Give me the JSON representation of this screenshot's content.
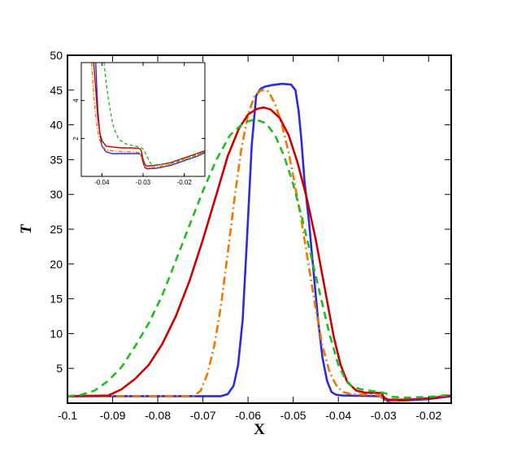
{
  "chart_data": [
    {
      "type": "line",
      "title": "",
      "xlabel": "X",
      "ylabel": "T",
      "xlim": [
        -0.1,
        -0.015
      ],
      "ylim": [
        0,
        50
      ],
      "xticks": [
        -0.1,
        -0.09,
        -0.08,
        -0.07,
        -0.06,
        -0.05,
        -0.04,
        -0.03,
        -0.02
      ],
      "xtick_labels": [
        "-0.1",
        "-0.09",
        "-0.08",
        "-0.07",
        "-0.06",
        "-0.05",
        "-0.04",
        "-0.03",
        "-0.02"
      ],
      "yticks": [
        5,
        10,
        15,
        20,
        25,
        30,
        35,
        40,
        45,
        50
      ],
      "ytick_labels": [
        "5",
        "10",
        "15",
        "20",
        "25",
        "30",
        "35",
        "40",
        "45",
        "50"
      ],
      "grid": false,
      "legend": "none",
      "series": [
        {
          "color": "#2b2bdd",
          "dash": "solid",
          "x": [
            -0.1,
            -0.066,
            -0.0645,
            -0.0632,
            -0.0622,
            -0.0612,
            -0.0602,
            -0.0592,
            -0.0582,
            -0.0572,
            -0.0562,
            -0.0548,
            -0.0525,
            -0.0505,
            -0.0495,
            -0.0488,
            -0.0482,
            -0.0475,
            -0.0465,
            -0.0455,
            -0.0445,
            -0.0435,
            -0.0425,
            -0.0415,
            -0.0405,
            -0.039,
            -0.035,
            -0.0305,
            -0.0297,
            -0.029,
            -0.025,
            -0.02,
            -0.015
          ],
          "y": [
            1.0,
            1.0,
            1.3,
            2.5,
            5.5,
            12,
            24,
            37,
            44.2,
            45.2,
            45.5,
            45.7,
            45.9,
            45.8,
            45,
            42,
            38,
            32,
            26,
            19,
            12,
            6.5,
            3.2,
            1.6,
            1.2,
            1.1,
            1.05,
            1.0,
            0.5,
            0.3,
            0.4,
            0.6,
            1.0
          ]
        },
        {
          "color": "#ee7700",
          "dash": "dashdot",
          "x": [
            -0.1,
            -0.072,
            -0.0705,
            -0.069,
            -0.0675,
            -0.066,
            -0.0645,
            -0.063,
            -0.0615,
            -0.06,
            -0.0585,
            -0.057,
            -0.0555,
            -0.054,
            -0.0525,
            -0.051,
            -0.0495,
            -0.048,
            -0.0465,
            -0.045,
            -0.0435,
            -0.042,
            -0.0405,
            -0.039,
            -0.0375,
            -0.036,
            -0.0345,
            -0.033,
            -0.031,
            -0.0302,
            -0.0295,
            -0.028,
            -0.025,
            -0.02,
            -0.015
          ],
          "y": [
            1.0,
            1.0,
            1.8,
            4.2,
            8.2,
            14,
            21.5,
            29.5,
            36.5,
            41.5,
            44.2,
            45.0,
            44.8,
            43,
            40,
            36,
            31,
            25.5,
            19.5,
            13.5,
            8.2,
            4.6,
            2.6,
            1.6,
            1.35,
            1.25,
            1.25,
            1.2,
            1.15,
            0.7,
            0.4,
            0.35,
            0.5,
            0.7,
            1.1
          ]
        },
        {
          "color": "#cc0000",
          "dash": "solid",
          "x": [
            -0.1,
            -0.091,
            -0.088,
            -0.085,
            -0.082,
            -0.079,
            -0.076,
            -0.073,
            -0.07,
            -0.067,
            -0.0645,
            -0.062,
            -0.06,
            -0.058,
            -0.0565,
            -0.055,
            -0.053,
            -0.051,
            -0.049,
            -0.047,
            -0.045,
            -0.043,
            -0.041,
            -0.0395,
            -0.038,
            -0.036,
            -0.034,
            -0.032,
            -0.0305,
            -0.0298,
            -0.029,
            -0.025,
            -0.02,
            -0.015
          ],
          "y": [
            1.0,
            1.1,
            2.0,
            3.5,
            5.5,
            8.5,
            12.5,
            17.5,
            23.5,
            30,
            35.5,
            39.5,
            41.5,
            42.3,
            42.5,
            42.2,
            41.0,
            38.5,
            34.5,
            29.5,
            23.5,
            16.5,
            9.5,
            5.5,
            3.0,
            1.8,
            1.5,
            1.5,
            1.45,
            0.8,
            0.5,
            0.5,
            0.7,
            1.1
          ]
        },
        {
          "color": "#22bb22",
          "dash": "dashed",
          "x": [
            -0.1,
            -0.097,
            -0.094,
            -0.091,
            -0.088,
            -0.085,
            -0.082,
            -0.079,
            -0.076,
            -0.073,
            -0.07,
            -0.067,
            -0.064,
            -0.061,
            -0.059,
            -0.0575,
            -0.056,
            -0.054,
            -0.052,
            -0.05,
            -0.048,
            -0.046,
            -0.044,
            -0.042,
            -0.04,
            -0.0385,
            -0.037,
            -0.035,
            -0.033,
            -0.031,
            -0.0295,
            -0.028,
            -0.025,
            -0.02,
            -0.015
          ],
          "y": [
            1.0,
            1.2,
            1.8,
            3.2,
            5.2,
            8.2,
            11.5,
            15.5,
            20.5,
            25.5,
            30.5,
            35.0,
            38.5,
            40.3,
            40.7,
            40.6,
            40.2,
            38.5,
            35.5,
            31.5,
            26.5,
            21.0,
            15.5,
            10.0,
            5.5,
            3.5,
            2.4,
            2.0,
            1.8,
            1.6,
            1.4,
            0.9,
            0.8,
            0.9,
            1.2
          ]
        }
      ]
    },
    {
      "type": "line",
      "title": "",
      "xlabel": "",
      "ylabel": "",
      "xlim": [
        -0.045,
        -0.015
      ],
      "ylim": [
        0,
        6
      ],
      "xticks": [
        -0.04,
        -0.03,
        -0.02
      ],
      "xtick_labels": [
        "-0.04",
        "-0.03",
        "-0.02"
      ],
      "yticks": [
        2,
        4
      ],
      "ytick_labels": [
        "2",
        "4"
      ],
      "grid": false,
      "legend": "none",
      "series": [
        {
          "color": "#2b2bdd",
          "dash": "solid",
          "x": [
            -0.0415,
            -0.041,
            -0.0405,
            -0.04,
            -0.039,
            -0.0375,
            -0.035,
            -0.033,
            -0.031,
            -0.0305,
            -0.03,
            -0.0295,
            -0.029,
            -0.027,
            -0.025,
            -0.023,
            -0.021,
            -0.019,
            -0.017,
            -0.015
          ],
          "y": [
            6,
            3.5,
            2.3,
            1.6,
            1.3,
            1.2,
            1.2,
            1.2,
            1.2,
            1.15,
            0.7,
            0.45,
            0.4,
            0.42,
            0.5,
            0.6,
            0.75,
            0.9,
            1.05,
            1.25
          ]
        },
        {
          "color": "#ee7700",
          "dash": "dashdot",
          "x": [
            -0.0425,
            -0.042,
            -0.0415,
            -0.041,
            -0.0405,
            -0.04,
            -0.039,
            -0.0375,
            -0.035,
            -0.033,
            -0.031,
            -0.0305,
            -0.03,
            -0.0295,
            -0.029,
            -0.027,
            -0.025,
            -0.023,
            -0.021,
            -0.019,
            -0.017,
            -0.015
          ],
          "y": [
            6,
            4.3,
            3.2,
            2.4,
            1.9,
            1.6,
            1.4,
            1.35,
            1.3,
            1.3,
            1.25,
            1.15,
            0.75,
            0.5,
            0.45,
            0.48,
            0.55,
            0.65,
            0.8,
            0.95,
            1.1,
            1.3
          ]
        },
        {
          "color": "#cc0000",
          "dash": "solid",
          "x": [
            -0.042,
            -0.0415,
            -0.041,
            -0.0405,
            -0.04,
            -0.039,
            -0.0375,
            -0.035,
            -0.033,
            -0.031,
            -0.0305,
            -0.03,
            -0.0295,
            -0.029,
            -0.027,
            -0.025,
            -0.023,
            -0.021,
            -0.019,
            -0.017,
            -0.015
          ],
          "y": [
            6,
            4.6,
            3.1,
            2.3,
            1.9,
            1.6,
            1.55,
            1.5,
            1.5,
            1.48,
            1.4,
            0.9,
            0.6,
            0.55,
            0.58,
            0.65,
            0.75,
            0.9,
            1.05,
            1.2,
            1.35
          ]
        },
        {
          "color": "#22bb22",
          "dash": "dashed",
          "x": [
            -0.0395,
            -0.039,
            -0.0385,
            -0.038,
            -0.0375,
            -0.037,
            -0.036,
            -0.035,
            -0.034,
            -0.033,
            -0.032,
            -0.031,
            -0.0303,
            -0.0298,
            -0.0292,
            -0.0285,
            -0.028,
            -0.027,
            -0.025,
            -0.023,
            -0.021,
            -0.019,
            -0.017,
            -0.015
          ],
          "y": [
            6,
            5.0,
            4.2,
            3.5,
            2.9,
            2.5,
            2.0,
            1.8,
            1.7,
            1.65,
            1.6,
            1.55,
            1.5,
            1.4,
            1.1,
            0.8,
            0.65,
            0.6,
            0.62,
            0.7,
            0.85,
            1.0,
            1.15,
            1.3
          ]
        }
      ]
    }
  ]
}
